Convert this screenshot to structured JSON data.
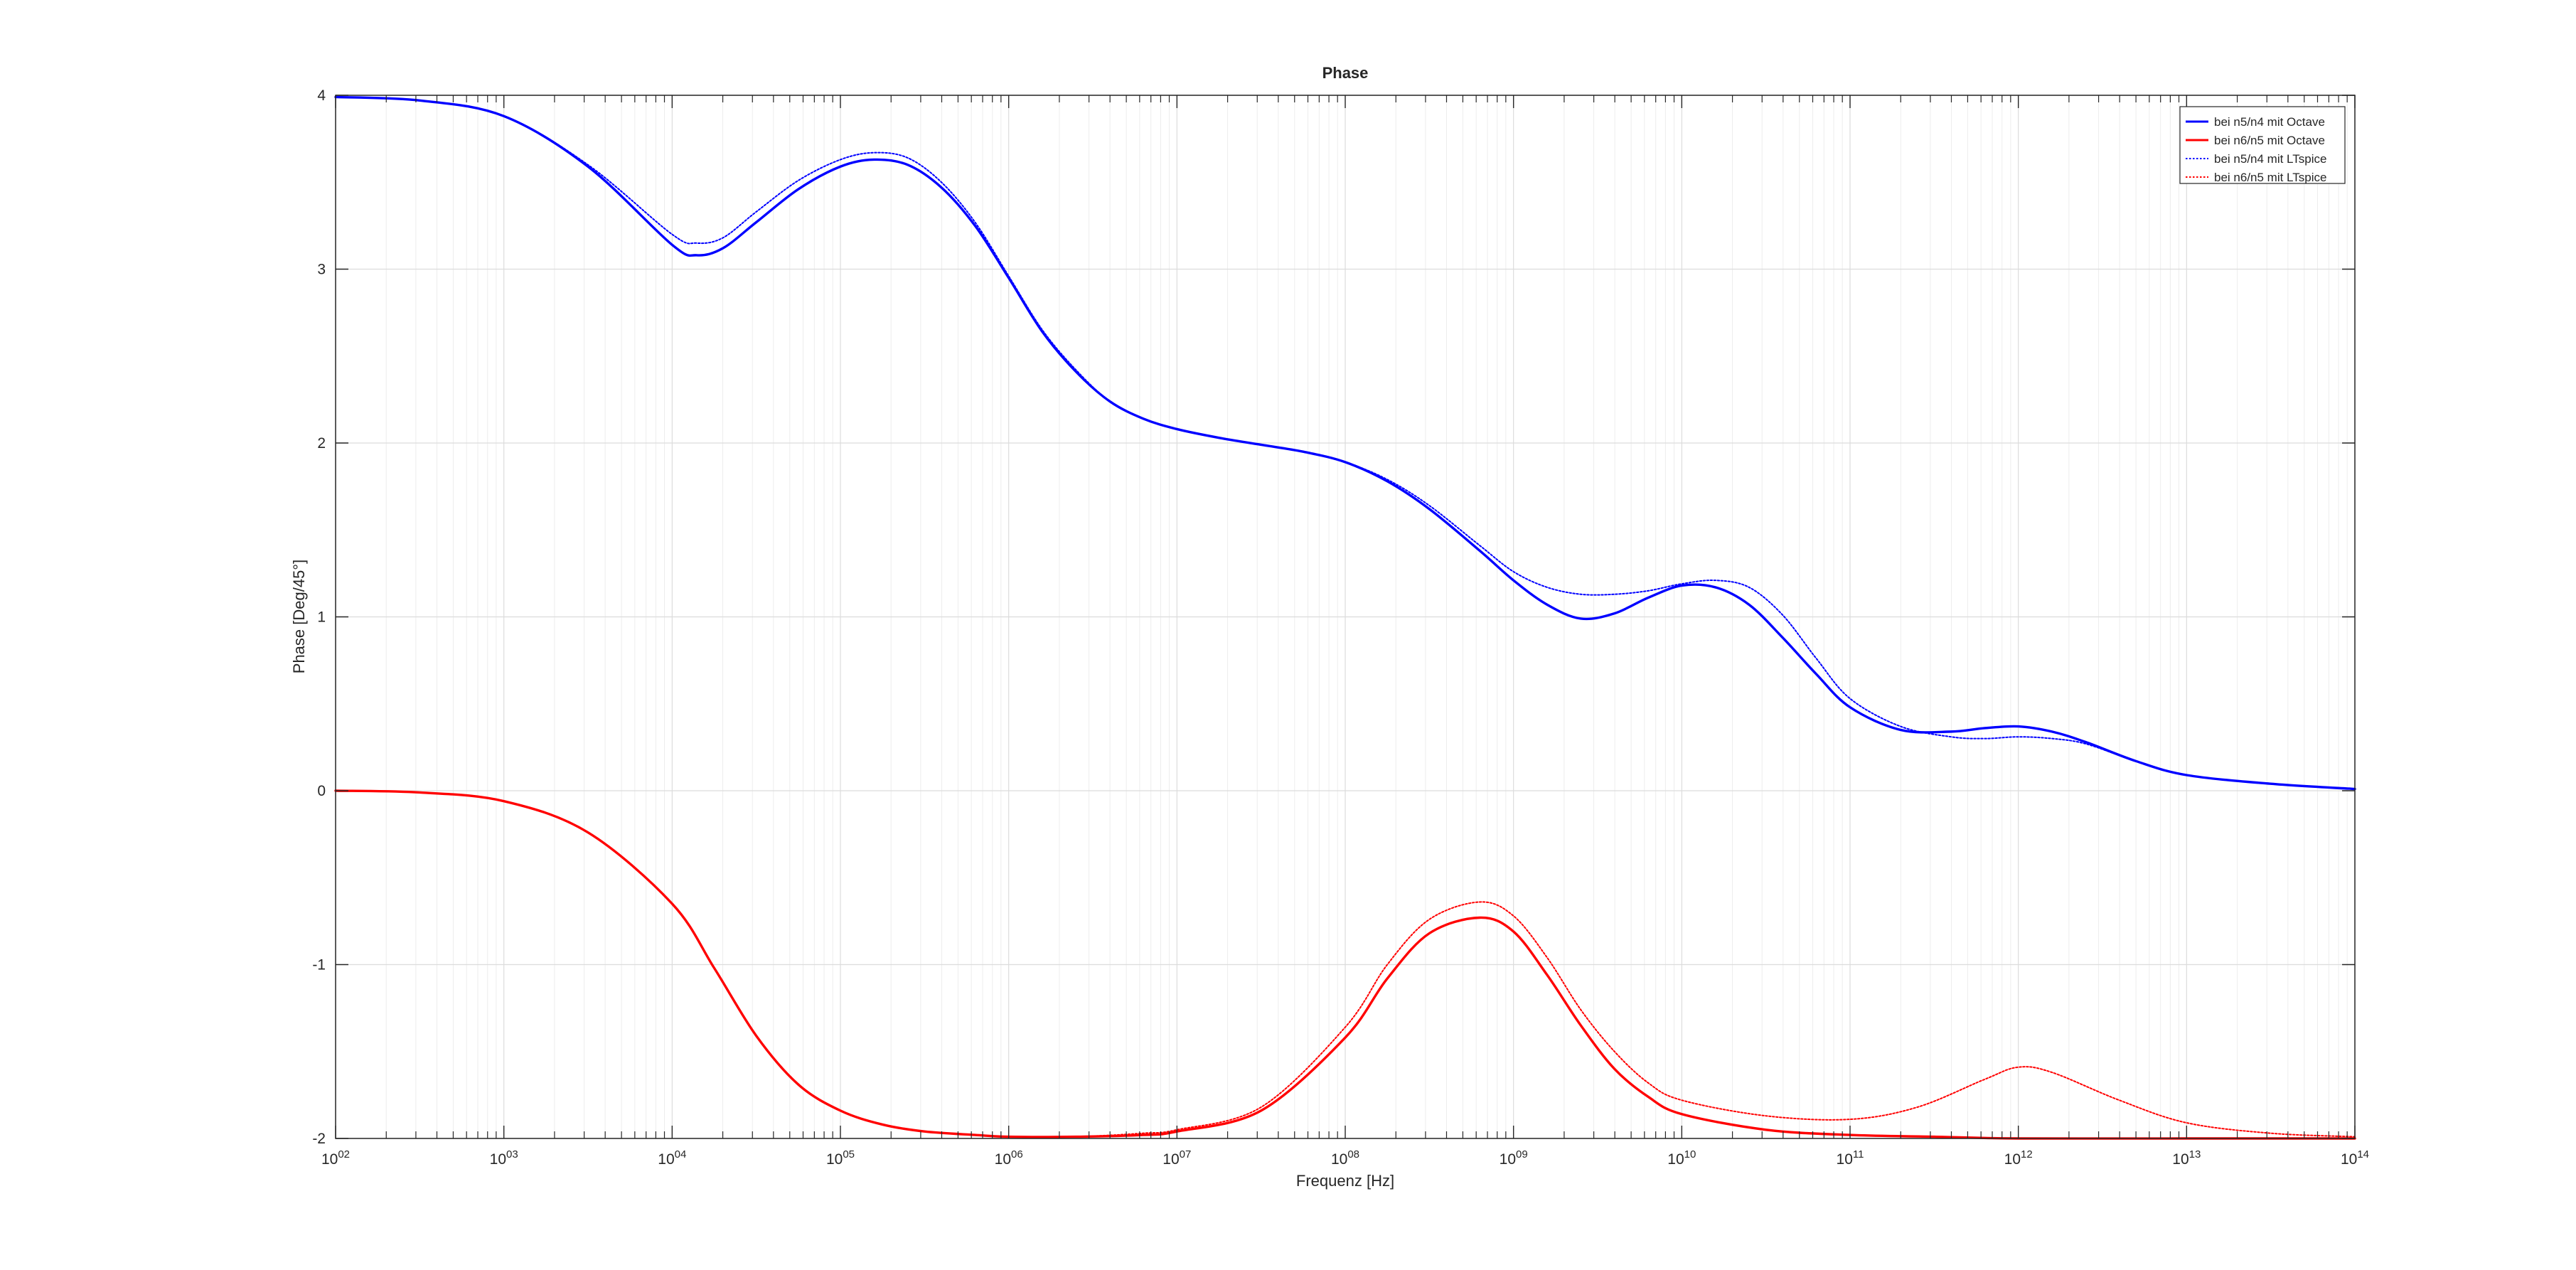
{
  "chart_data": {
    "type": "line",
    "title": "Phase",
    "xlabel": "Frequenz [Hz]",
    "ylabel": "Phase [Deg/45°]",
    "xscale": "log",
    "xlim": [
      100,
      100000000000000
    ],
    "ylim": [
      -2,
      4
    ],
    "xtick_labels": [
      {
        "base": "10",
        "exp": "02",
        "value": 100
      },
      {
        "base": "10",
        "exp": "03",
        "value": 1000
      },
      {
        "base": "10",
        "exp": "04",
        "value": 10000
      },
      {
        "base": "10",
        "exp": "05",
        "value": 100000
      },
      {
        "base": "10",
        "exp": "06",
        "value": 1000000
      },
      {
        "base": "10",
        "exp": "07",
        "value": 10000000
      },
      {
        "base": "10",
        "exp": "08",
        "value": 100000000
      },
      {
        "base": "10",
        "exp": "09",
        "value": 1000000000
      },
      {
        "base": "10",
        "exp": "10",
        "value": 10000000000
      },
      {
        "base": "10",
        "exp": "11",
        "value": 100000000000
      },
      {
        "base": "10",
        "exp": "12",
        "value": 1000000000000
      },
      {
        "base": "10",
        "exp": "13",
        "value": 10000000000000
      },
      {
        "base": "10",
        "exp": "14",
        "value": 100000000000000
      }
    ],
    "ytick_labels": [
      "-2",
      "-1",
      "0",
      "1",
      "2",
      "3",
      "4"
    ],
    "ytick_values": [
      -2,
      -1,
      0,
      1,
      2,
      3,
      4
    ],
    "grid": true,
    "minor_grid": true,
    "legend_position": "top-right",
    "series": [
      {
        "name": "bei n5/n4 mit Octave",
        "color": "#0000ff",
        "style": "solid",
        "x": [
          100,
          316,
          1000,
          3162,
          10000,
          14000,
          20000,
          31623,
          56234,
          100000,
          158489,
          251189,
          398107,
          630957,
          1000000,
          1584893,
          2511886,
          3981072,
          6309573,
          10000000,
          17782794,
          31622777,
          56234133,
          100000000,
          177827941,
          316227766,
          630957344,
          1000000000,
          1584893192,
          2511886432,
          3981071706,
          6309573445,
          10000000000,
          15848931925,
          25118864315,
          39810717055,
          63095734448,
          100000000000,
          199526231497,
          398107170553,
          630957344480,
          1000000000000,
          1584893192461,
          2511886431510,
          5011872336273,
          10000000000000,
          31622776601684,
          100000000000000
        ],
        "y": [
          3.99,
          3.97,
          3.88,
          3.59,
          3.14,
          3.08,
          3.12,
          3.27,
          3.46,
          3.59,
          3.63,
          3.6,
          3.47,
          3.25,
          2.95,
          2.64,
          2.41,
          2.24,
          2.14,
          2.08,
          2.03,
          1.99,
          1.95,
          1.89,
          1.78,
          1.62,
          1.38,
          1.21,
          1.07,
          0.99,
          1.02,
          1.11,
          1.18,
          1.17,
          1.07,
          0.88,
          0.67,
          0.48,
          0.35,
          0.34,
          0.36,
          0.37,
          0.34,
          0.28,
          0.17,
          0.09,
          0.04,
          0.01
        ]
      },
      {
        "name": "bei n6/n5 mit Octave",
        "color": "#ff0000",
        "style": "solid",
        "x": [
          100,
          316,
          1000,
          3162,
          10000,
          17783,
          31623,
          56234,
          100000,
          177828,
          316228,
          630957,
          1000000,
          2511886,
          6309573,
          10000000,
          31622777,
          100000000,
          177827941,
          316227766,
          630957344,
          1000000000,
          1584893192,
          2511886432,
          3981071706,
          6309573445,
          10000000000,
          31622776602,
          100000000000,
          316227766017,
          1000000000000,
          10000000000000,
          100000000000000
        ],
        "y": [
          0.0,
          -0.01,
          -0.06,
          -0.24,
          -0.65,
          -1.02,
          -1.41,
          -1.69,
          -1.84,
          -1.92,
          -1.96,
          -1.98,
          -1.99,
          -1.99,
          -1.98,
          -1.96,
          -1.84,
          -1.42,
          -1.08,
          -0.82,
          -0.73,
          -0.81,
          -1.06,
          -1.35,
          -1.6,
          -1.76,
          -1.86,
          -1.95,
          -1.98,
          -1.99,
          -2.0,
          -2.0,
          -2.0
        ]
      },
      {
        "name": "bei n5/n4 mit LTspice",
        "color": "#0000ff",
        "style": "dotted",
        "x": [
          100,
          316,
          1000,
          3162,
          10000,
          14000,
          20000,
          31623,
          56234,
          100000,
          158489,
          251189,
          398107,
          630957,
          1000000,
          1584893,
          2511886,
          3981072,
          6309573,
          10000000,
          17782794,
          31622777,
          56234133,
          100000000,
          177827941,
          316227766,
          630957344,
          1000000000,
          1584893192,
          2511886432,
          3981071706,
          6309573445,
          10000000000,
          15848931925,
          25118864315,
          39810717055,
          63095734448,
          100000000000,
          199526231497,
          398107170553,
          630957344480,
          1000000000000,
          1584893192461,
          2511886431510,
          5011872336273,
          10000000000000,
          31622776601684,
          100000000000000
        ],
        "y": [
          3.99,
          3.97,
          3.88,
          3.6,
          3.2,
          3.15,
          3.18,
          3.33,
          3.51,
          3.63,
          3.67,
          3.64,
          3.5,
          3.27,
          2.96,
          2.65,
          2.42,
          2.24,
          2.14,
          2.08,
          2.03,
          1.99,
          1.95,
          1.89,
          1.79,
          1.64,
          1.41,
          1.26,
          1.17,
          1.13,
          1.13,
          1.15,
          1.19,
          1.21,
          1.17,
          1.01,
          0.76,
          0.53,
          0.37,
          0.31,
          0.3,
          0.31,
          0.3,
          0.27,
          0.17,
          0.09,
          0.04,
          0.01
        ]
      },
      {
        "name": "bei n6/n5 mit LTspice",
        "color": "#ff0000",
        "style": "dotted",
        "x": [
          100,
          316,
          1000,
          3162,
          10000,
          17783,
          31623,
          56234,
          100000,
          177828,
          316228,
          630957,
          1000000,
          2511886,
          6309573,
          10000000,
          31622777,
          100000000,
          177827941,
          316227766,
          630957344,
          1000000000,
          1584893192,
          2511886432,
          3981071706,
          6309573445,
          10000000000,
          31622776602,
          100000000000,
          251188643151,
          630957344480,
          1000000000000,
          1584893192461,
          3981071705535,
          10000000000000,
          31622776601684,
          100000000000000
        ],
        "y": [
          0.0,
          -0.01,
          -0.06,
          -0.24,
          -0.65,
          -1.02,
          -1.41,
          -1.69,
          -1.84,
          -1.92,
          -1.96,
          -1.98,
          -1.99,
          -1.99,
          -1.97,
          -1.95,
          -1.82,
          -1.36,
          -1.0,
          -0.74,
          -0.64,
          -0.72,
          -0.96,
          -1.26,
          -1.5,
          -1.68,
          -1.78,
          -1.87,
          -1.89,
          -1.82,
          -1.66,
          -1.59,
          -1.62,
          -1.78,
          -1.91,
          -1.97,
          -1.99
        ]
      }
    ]
  }
}
